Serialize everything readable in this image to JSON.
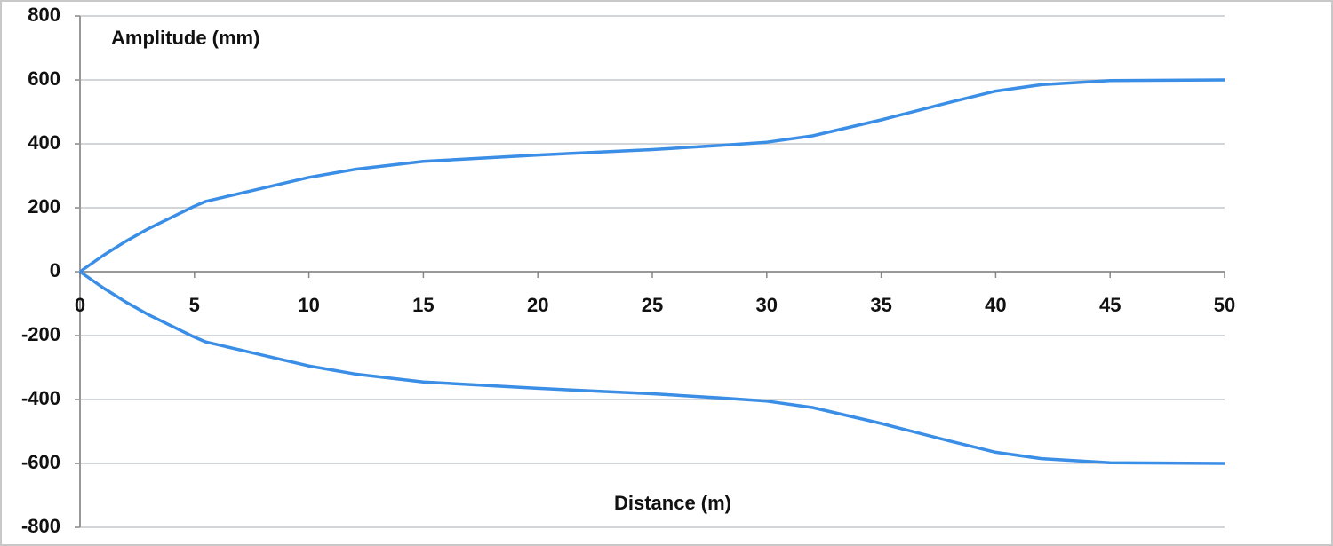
{
  "chart_data": {
    "type": "line",
    "y_label": "Amplitude (mm)",
    "x_label": "Distance (m)",
    "x": [
      0,
      1,
      2,
      3,
      4,
      5,
      5.5,
      7,
      10,
      12,
      15,
      20,
      25,
      28,
      30,
      32,
      35,
      38,
      40,
      42,
      45,
      50
    ],
    "series": [
      {
        "color": "#3a8ee6",
        "values": [
          0,
          50,
          95,
          135,
          170,
          205,
          220,
          245,
          295,
          320,
          345,
          365,
          382,
          395,
          405,
          425,
          475,
          530,
          565,
          585,
          598,
          600
        ]
      },
      {
        "color": "#3a8ee6",
        "values": [
          0,
          -50,
          -95,
          -135,
          -170,
          -205,
          -220,
          -245,
          -295,
          -320,
          -345,
          -365,
          -382,
          -395,
          -405,
          -425,
          -475,
          -530,
          -565,
          -585,
          -598,
          -600
        ]
      }
    ],
    "xlim": [
      0,
      50
    ],
    "xticks": [
      0,
      5,
      10,
      15,
      20,
      25,
      30,
      35,
      40,
      45,
      50
    ],
    "ylim": [
      -800,
      800
    ],
    "yticks": [
      -800,
      -600,
      -400,
      -200,
      0,
      200,
      400,
      600,
      800
    ],
    "grid": true
  }
}
